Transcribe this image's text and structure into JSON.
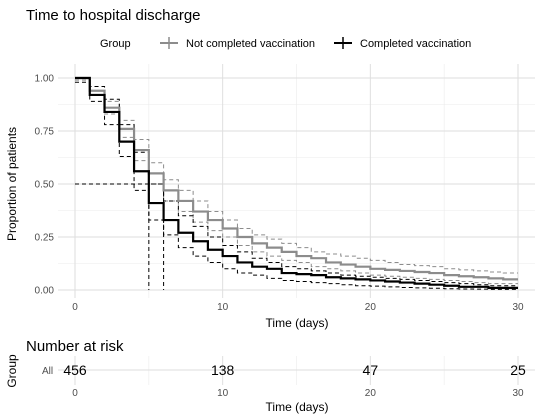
{
  "chart_data": {
    "type": "line",
    "title": "Time to hospital discharge",
    "legend": {
      "title": "Group",
      "placement": "top",
      "entries": [
        {
          "label": "Not completed vaccination",
          "color": "#8c8c8c"
        },
        {
          "label": "Completed vaccination",
          "color": "#000000"
        }
      ]
    },
    "xlabel": "Time (days)",
    "ylabel": "Proportion of patients",
    "xlim": [
      0,
      30
    ],
    "ylim": [
      0,
      1
    ],
    "x_ticks": [
      "0",
      "10",
      "20",
      "30"
    ],
    "y_ticks": [
      "0.00",
      "0.25",
      "0.50",
      "0.75",
      "1.00"
    ],
    "grid": true,
    "median_line": {
      "y": 0.5,
      "x_values": [
        5,
        6
      ]
    },
    "series": [
      {
        "name": "Not completed vaccination",
        "color": "#8c8c8c",
        "step": true,
        "x": [
          0,
          1,
          2,
          3,
          4,
          5,
          6,
          7,
          8,
          9,
          10,
          11,
          12,
          13,
          14,
          15,
          16,
          17,
          18,
          19,
          20,
          21,
          22,
          23,
          24,
          25,
          26,
          27,
          28,
          29,
          30
        ],
        "y": [
          1.0,
          0.94,
          0.86,
          0.76,
          0.66,
          0.55,
          0.47,
          0.42,
          0.37,
          0.33,
          0.29,
          0.25,
          0.22,
          0.2,
          0.18,
          0.16,
          0.15,
          0.13,
          0.12,
          0.11,
          0.1,
          0.095,
          0.09,
          0.085,
          0.08,
          0.07,
          0.065,
          0.06,
          0.055,
          0.05,
          0.05
        ],
        "ci_upper": [
          1.0,
          0.96,
          0.89,
          0.8,
          0.71,
          0.6,
          0.52,
          0.47,
          0.42,
          0.37,
          0.33,
          0.29,
          0.26,
          0.24,
          0.22,
          0.2,
          0.18,
          0.17,
          0.16,
          0.15,
          0.14,
          0.13,
          0.12,
          0.115,
          0.11,
          0.1,
          0.095,
          0.09,
          0.085,
          0.08,
          0.08
        ],
        "ci_lower": [
          0.99,
          0.92,
          0.83,
          0.72,
          0.61,
          0.5,
          0.42,
          0.37,
          0.32,
          0.28,
          0.25,
          0.21,
          0.18,
          0.16,
          0.14,
          0.13,
          0.11,
          0.1,
          0.09,
          0.08,
          0.07,
          0.065,
          0.06,
          0.055,
          0.05,
          0.045,
          0.04,
          0.035,
          0.03,
          0.03,
          0.03
        ]
      },
      {
        "name": "Completed vaccination",
        "color": "#000000",
        "step": true,
        "x": [
          0,
          1,
          2,
          3,
          4,
          5,
          6,
          7,
          8,
          9,
          10,
          11,
          12,
          13,
          14,
          15,
          16,
          17,
          18,
          19,
          20,
          21,
          22,
          23,
          24,
          25,
          26,
          27,
          28,
          29,
          30
        ],
        "y": [
          1.0,
          0.92,
          0.84,
          0.7,
          0.56,
          0.41,
          0.33,
          0.27,
          0.23,
          0.19,
          0.16,
          0.13,
          0.11,
          0.1,
          0.08,
          0.075,
          0.07,
          0.06,
          0.055,
          0.05,
          0.045,
          0.04,
          0.035,
          0.03,
          0.025,
          0.02,
          0.015,
          0.015,
          0.01,
          0.01,
          0.01
        ],
        "ci_upper": [
          1.0,
          0.96,
          0.9,
          0.78,
          0.65,
          0.5,
          0.42,
          0.35,
          0.3,
          0.25,
          0.21,
          0.18,
          0.15,
          0.13,
          0.11,
          0.1,
          0.09,
          0.08,
          0.07,
          0.065,
          0.06,
          0.055,
          0.05,
          0.045,
          0.04,
          0.035,
          0.03,
          0.025,
          0.02,
          0.02,
          0.02
        ],
        "ci_lower": [
          0.98,
          0.89,
          0.78,
          0.63,
          0.47,
          0.33,
          0.26,
          0.2,
          0.16,
          0.13,
          0.1,
          0.08,
          0.07,
          0.055,
          0.045,
          0.04,
          0.035,
          0.03,
          0.025,
          0.02,
          0.018,
          0.015,
          0.012,
          0.01,
          0.008,
          0.006,
          0.005,
          0.004,
          0.003,
          0.003,
          0.003
        ]
      }
    ]
  },
  "risk_table": {
    "title": "Number at risk",
    "ylabel": "Group",
    "row_label": "All",
    "xlabel": "Time (days)",
    "x_ticks": [
      "0",
      "10",
      "20",
      "30"
    ],
    "times": [
      0,
      10,
      20,
      30
    ],
    "values": [
      "456",
      "138",
      "47",
      "25"
    ]
  }
}
